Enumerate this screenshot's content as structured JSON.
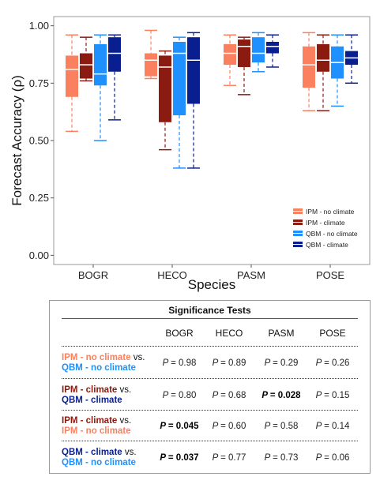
{
  "chart_data": {
    "type": "box",
    "xlabel": "Species",
    "ylabel": "Forecast Accuracy (ρ)",
    "ylim": [
      -0.04,
      1.04
    ],
    "yticks": [
      "0.00",
      "0.25",
      "0.50",
      "0.75",
      "1.00"
    ],
    "ytick_values": [
      0,
      0.25,
      0.5,
      0.75,
      1.0
    ],
    "categories": [
      "BOGR",
      "HECO",
      "PASM",
      "POSE"
    ],
    "legend_position": "bottom-right",
    "grid": false,
    "series": [
      {
        "name": "IPM - no climate",
        "color": "#FA8060",
        "boxes": [
          {
            "min": 0.54,
            "q1": 0.69,
            "median": 0.81,
            "q3": 0.87,
            "max": 0.96
          },
          {
            "min": 0.77,
            "q1": 0.78,
            "median": 0.85,
            "q3": 0.88,
            "max": 0.98
          },
          {
            "min": 0.74,
            "q1": 0.83,
            "median": 0.88,
            "q3": 0.92,
            "max": 0.96
          },
          {
            "min": 0.63,
            "q1": 0.73,
            "median": 0.83,
            "q3": 0.91,
            "max": 0.97
          }
        ]
      },
      {
        "name": "IPM - climate",
        "color": "#8B1A10",
        "boxes": [
          {
            "min": 0.76,
            "q1": 0.77,
            "median": 0.83,
            "q3": 0.88,
            "max": 0.95
          },
          {
            "min": 0.46,
            "q1": 0.58,
            "median": 0.82,
            "q3": 0.87,
            "max": 0.89
          },
          {
            "min": 0.7,
            "q1": 0.82,
            "median": 0.91,
            "q3": 0.94,
            "max": 0.95
          },
          {
            "min": 0.63,
            "q1": 0.8,
            "median": 0.85,
            "q3": 0.92,
            "max": 0.96
          }
        ]
      },
      {
        "name": "QBM - no climate",
        "color": "#1E90FF",
        "boxes": [
          {
            "min": 0.5,
            "q1": 0.74,
            "median": 0.79,
            "q3": 0.92,
            "max": 0.96
          },
          {
            "min": 0.38,
            "q1": 0.61,
            "median": 0.88,
            "q3": 0.93,
            "max": 0.95
          },
          {
            "min": 0.8,
            "q1": 0.84,
            "median": 0.88,
            "q3": 0.95,
            "max": 0.97
          },
          {
            "min": 0.65,
            "q1": 0.77,
            "median": 0.84,
            "q3": 0.91,
            "max": 0.96
          }
        ]
      },
      {
        "name": "QBM - climate",
        "color": "#0A1F8F",
        "boxes": [
          {
            "min": 0.59,
            "q1": 0.8,
            "median": 0.88,
            "q3": 0.95,
            "max": 0.96
          },
          {
            "min": 0.38,
            "q1": 0.66,
            "median": 0.85,
            "q3": 0.95,
            "max": 0.97
          },
          {
            "min": 0.82,
            "q1": 0.88,
            "median": 0.91,
            "q3": 0.93,
            "max": 0.96
          },
          {
            "min": 0.75,
            "q1": 0.83,
            "median": 0.86,
            "q3": 0.89,
            "max": 0.96
          }
        ]
      }
    ]
  },
  "significance_table": {
    "title": "Significance Tests",
    "columns": [
      "BOGR",
      "HECO",
      "PASM",
      "POSE"
    ],
    "rows": [
      {
        "label_a": "IPM - no climate",
        "color_a": "#FA8060",
        "vs": "vs.",
        "label_b": "QBM - no climate",
        "color_b": "#1E90FF",
        "p_prefix": [
          "P",
          "P",
          "P",
          "P"
        ],
        "values": [
          "= 0.98",
          "= 0.89",
          "= 0.29",
          "= 0.26"
        ],
        "significant": [
          false,
          false,
          false,
          false
        ]
      },
      {
        "label_a": "IPM - climate",
        "color_a": "#8B1A10",
        "vs": "vs.",
        "label_b": "QBM - climate",
        "color_b": "#0A1F8F",
        "p_prefix": [
          "P",
          "P",
          "P",
          "P"
        ],
        "values": [
          "= 0.80",
          "= 0.68",
          "= 0.028",
          "= 0.15"
        ],
        "significant": [
          false,
          false,
          true,
          false
        ]
      },
      {
        "label_a": "IPM - climate",
        "color_a": "#8B1A10",
        "vs": "vs.",
        "label_b": "IPM - no climate",
        "color_b": "#FA8060",
        "p_prefix": [
          "P",
          "P",
          "P",
          "P"
        ],
        "values": [
          "= 0.045",
          "= 0.60",
          "= 0.58",
          "= 0.14"
        ],
        "significant": [
          true,
          false,
          false,
          false
        ]
      },
      {
        "label_a": "QBM - climate",
        "color_a": "#0A1F8F",
        "vs": "vs.",
        "label_b": "QBM - no climate",
        "color_b": "#1E90FF",
        "p_prefix": [
          "P",
          "P",
          "P",
          "P"
        ],
        "values": [
          "= 0.037",
          "= 0.77",
          "= 0.73",
          "= 0.06"
        ],
        "significant": [
          true,
          false,
          false,
          false
        ]
      }
    ]
  }
}
